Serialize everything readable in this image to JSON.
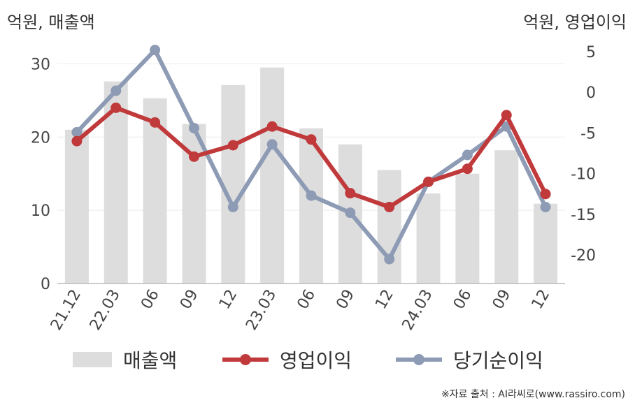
{
  "left_axis_label": "억원, 매출액",
  "right_axis_label": "억원, 영업이익",
  "source": "※자료 출처 : AI라씨로(www.rassiro.com)",
  "chart_data": {
    "type": "bar+line",
    "categories": [
      "21.12",
      "22.03",
      "06",
      "09",
      "12",
      "23.03",
      "06",
      "09",
      "12",
      "24.03",
      "06",
      "09",
      "12"
    ],
    "y_left": {
      "label": "억원, 매출액",
      "ticks": [
        0,
        10,
        20,
        30
      ],
      "range": [
        0,
        33
      ]
    },
    "y_right": {
      "label": "억원, 영업이익",
      "ticks": [
        5,
        0,
        -5,
        -10,
        -15,
        -20
      ],
      "range": [
        -23.5,
        6.2
      ]
    },
    "series": [
      {
        "name": "매출액",
        "type": "bar",
        "axis": "left",
        "color": "#dddddd",
        "values": [
          21.0,
          27.6,
          25.3,
          21.8,
          27.1,
          29.5,
          21.2,
          19.0,
          15.5,
          12.3,
          15.0,
          18.2,
          10.9
        ]
      },
      {
        "name": "영업이익",
        "type": "line",
        "axis": "right",
        "color": "#c0393b",
        "values": [
          -6.0,
          -1.9,
          -3.7,
          -7.9,
          -6.5,
          -4.2,
          -5.8,
          -12.4,
          -14.1,
          -11.0,
          -9.4,
          -2.8,
          -12.5
        ]
      },
      {
        "name": "당기순이익",
        "type": "line",
        "axis": "right",
        "color": "#8e9bb5",
        "values": [
          -4.9,
          0.2,
          5.2,
          -4.4,
          -14.1,
          -6.4,
          -12.7,
          -14.8,
          -20.5,
          -11.0,
          -7.7,
          -4.2,
          -14.1
        ]
      }
    ],
    "legend": [
      "매출액",
      "영업이익",
      "당기순이익"
    ],
    "legend_position": "bottom",
    "grid": true
  }
}
